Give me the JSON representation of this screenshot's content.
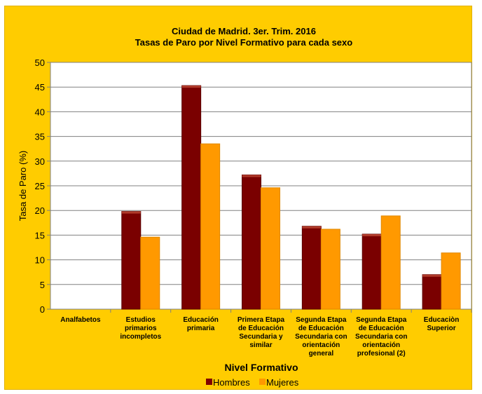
{
  "chart_data": {
    "type": "bar",
    "title": "Ciudad de Madrid. 3er. Trim. 2016",
    "subtitle": "Tasas de Paro por Nivel Formativo para cada sexo",
    "xlabel": "Nivel Formativo",
    "ylabel": "Tasa de Paro (%)",
    "ylim": [
      0,
      50
    ],
    "yticks": [
      0,
      5,
      10,
      15,
      20,
      25,
      30,
      35,
      40,
      45,
      50
    ],
    "grid": true,
    "legend_position": "bottom",
    "categories": [
      [
        "Analfabetos"
      ],
      [
        "Estudios",
        "primarios",
        "incompletos"
      ],
      [
        "Educación",
        "primaria"
      ],
      [
        "Primera Etapa",
        "de Educación",
        "Secundaria y",
        "similar"
      ],
      [
        "Segunda Etapa",
        "de Educación",
        "Secundaria con",
        "orientación",
        "general"
      ],
      [
        "Segunda Etapa",
        "de Educación",
        "Secundaria con",
        "orientación",
        "profesional (2)"
      ],
      [
        "Educaciòn",
        "Superior"
      ]
    ],
    "series": [
      {
        "name": "Hombres",
        "color": "#800000",
        "values": [
          0,
          19.8,
          45.3,
          27.2,
          16.8,
          15.2,
          7.0
        ]
      },
      {
        "name": "Mujeres",
        "color": "#ff9900",
        "values": [
          0,
          14.6,
          33.5,
          24.6,
          16.2,
          18.9,
          11.4
        ]
      }
    ]
  }
}
